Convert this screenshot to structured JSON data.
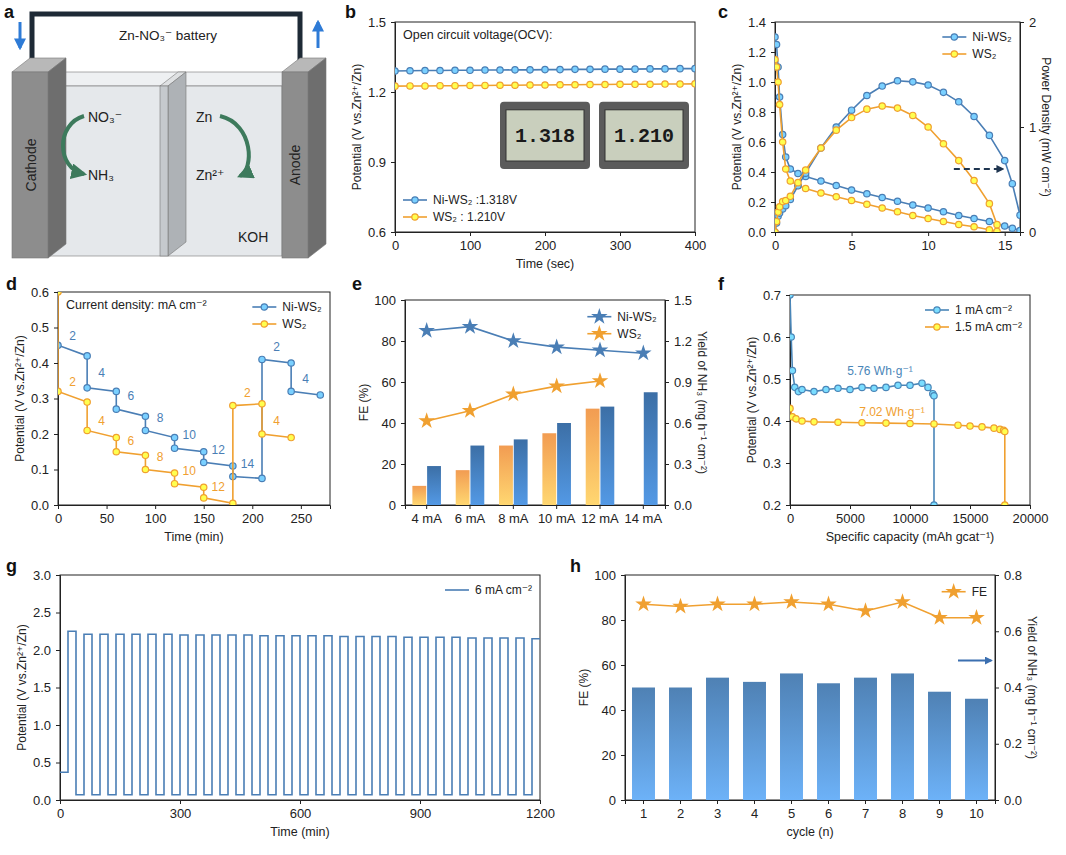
{
  "diagram": {
    "panel_label": "a",
    "title": "Zn-NO₃⁻ battery",
    "cathode": "Cathode",
    "anode": "Anode",
    "reactant": "NO₃⁻",
    "product": "NH₃",
    "metal": "Zn",
    "ion": "Zn²⁺",
    "electrolyte": "KOH"
  },
  "chart_data": [
    {
      "panel_label": "b",
      "type": "line",
      "title": "Open circuit voltage(OCV):",
      "annotations": [
        "1.318",
        "1.210"
      ],
      "xlabel": "Time (sec)",
      "ylabel": "Potential (V vs.Zn²⁺/Zn)",
      "x": [
        0,
        20,
        40,
        60,
        80,
        100,
        120,
        140,
        160,
        180,
        200,
        220,
        240,
        260,
        280,
        300,
        320,
        340,
        360,
        380,
        400
      ],
      "xlim": [
        0,
        400
      ],
      "xticks": [
        0,
        100,
        200,
        300,
        400
      ],
      "ylim": [
        0.6,
        1.5
      ],
      "yticks": [
        0.6,
        0.9,
        1.2,
        1.5
      ],
      "legend": "lower left",
      "series": [
        {
          "name": "Ni-WS₂ :1.318V",
          "color": "#4a7eb5",
          "marker": "circle",
          "values": [
            1.29,
            1.291,
            1.292,
            1.292,
            1.293,
            1.293,
            1.294,
            1.294,
            1.295,
            1.295,
            1.296,
            1.296,
            1.297,
            1.297,
            1.298,
            1.298,
            1.298,
            1.299,
            1.299,
            1.3,
            1.3
          ]
        },
        {
          "name": "WS₂ : 1.210V",
          "color": "#f0a030",
          "marker": "circle",
          "values": [
            1.225,
            1.226,
            1.226,
            1.227,
            1.227,
            1.228,
            1.228,
            1.229,
            1.229,
            1.23,
            1.23,
            1.231,
            1.231,
            1.232,
            1.232,
            1.233,
            1.233,
            1.233,
            1.234,
            1.234,
            1.235
          ]
        }
      ]
    },
    {
      "panel_label": "c",
      "type": "line",
      "ylabel": "Potential (V vs.Zn²⁺/Zn)",
      "y2label": "Power Density (mW cm⁻²)",
      "xlim": [
        0,
        16
      ],
      "xticks": [
        0,
        5,
        10,
        15
      ],
      "ylim": [
        0,
        1.4
      ],
      "yticks": [
        {
          "value": 0,
          "label": "0.0"
        },
        0.2,
        0.4,
        0.6,
        0.8,
        {
          "value": 1,
          "label": "1.0"
        },
        1.2,
        1.4
      ],
      "y2lim": [
        0,
        2
      ],
      "y2ticks": [
        0,
        1,
        2
      ],
      "legend": "upper right",
      "series": [
        {
          "name": "Ni-WS₂",
          "color": "#4a7eb5",
          "marker": "circle",
          "x": [
            0,
            0.1,
            0.2,
            0.3,
            0.5,
            0.7,
            1,
            1.5,
            2,
            3,
            4,
            5,
            6,
            7,
            8,
            9,
            10,
            11,
            12,
            13,
            14,
            15,
            15.5,
            16
          ],
          "values": [
            1.3,
            1.25,
            1.1,
            0.9,
            0.65,
            0.5,
            0.42,
            0.39,
            0.37,
            0.34,
            0.31,
            0.28,
            0.255,
            0.23,
            0.205,
            0.18,
            0.16,
            0.135,
            0.11,
            0.09,
            0.07,
            0.04,
            0.025,
            0.01
          ]
        },
        {
          "name": "WS₂",
          "color": "#f0a030",
          "marker": "circle",
          "x": [
            0,
            0.1,
            0.2,
            0.3,
            0.5,
            0.7,
            1,
            1.5,
            2,
            3,
            4,
            5,
            6,
            7,
            8,
            9,
            10,
            11,
            12,
            13,
            14,
            14.5
          ],
          "values": [
            1.15,
            1.1,
            1.0,
            0.85,
            0.6,
            0.42,
            0.34,
            0.31,
            0.29,
            0.26,
            0.235,
            0.21,
            0.185,
            0.16,
            0.135,
            0.11,
            0.09,
            0.07,
            0.05,
            0.035,
            0.015,
            0.005
          ]
        },
        {
          "color": "#4a7eb5",
          "marker": "circle",
          "axis": "y2",
          "x": [
            0,
            0.1,
            0.2,
            0.3,
            0.5,
            0.7,
            1,
            1.5,
            2,
            3,
            4,
            5,
            6,
            7,
            8,
            9,
            10,
            11,
            12,
            13,
            14,
            15,
            15.5,
            16
          ],
          "values": [
            0,
            0.085,
            0.15,
            0.18,
            0.22,
            0.25,
            0.31,
            0.44,
            0.56,
            0.8,
            1.0,
            1.16,
            1.3,
            1.39,
            1.44,
            1.43,
            1.4,
            1.33,
            1.24,
            1.1,
            0.92,
            0.68,
            0.46,
            0.16
          ]
        },
        {
          "color": "#f0a030",
          "marker": "circle",
          "axis": "y2",
          "x": [
            0,
            0.1,
            0.2,
            0.3,
            0.5,
            0.7,
            1,
            1.5,
            2,
            3,
            4,
            5,
            6,
            7,
            8,
            9,
            10,
            11,
            12,
            13,
            14,
            14.5
          ],
          "values": [
            0,
            0.1,
            0.19,
            0.24,
            0.29,
            0.3,
            0.34,
            0.47,
            0.59,
            0.8,
            0.97,
            1.09,
            1.17,
            1.2,
            1.18,
            1.11,
            1.0,
            0.84,
            0.68,
            0.49,
            0.27,
            0.07
          ]
        }
      ]
    },
    {
      "panel_label": "d",
      "type": "line",
      "title": "Current density: mA cm⁻²",
      "xlabel": "Time (min)",
      "ylabel": "Potential (V vs.Zn²⁺/Zn)",
      "xlim": [
        0,
        280
      ],
      "xticks": [
        0,
        50,
        100,
        150,
        200,
        250
      ],
      "ylim": [
        0,
        0.6
      ],
      "yticks": [
        {
          "value": 0,
          "label": "0.0"
        },
        0.1,
        0.2,
        0.3,
        0.4,
        0.5,
        0.6
      ],
      "legend": "upper right",
      "series": [
        {
          "name": "Ni-WS₂",
          "color": "#4a7eb5",
          "marker": "circle",
          "x": [
            0,
            30,
            30,
            60,
            60,
            90,
            90,
            120,
            120,
            150,
            150,
            180,
            180,
            210,
            210,
            240,
            240,
            270
          ],
          "values": [
            0.45,
            0.42,
            0.33,
            0.32,
            0.27,
            0.25,
            0.21,
            0.19,
            0.16,
            0.15,
            0.12,
            0.11,
            0.08,
            0.075,
            0.41,
            0.4,
            0.32,
            0.31
          ],
          "annotations": [
            {
              "text": "2",
              "x": 15,
              "y": 0.465
            },
            {
              "text": "4",
              "x": 45,
              "y": 0.36
            },
            {
              "text": "6",
              "x": 75,
              "y": 0.295
            },
            {
              "text": "8",
              "x": 105,
              "y": 0.235
            },
            {
              "text": "10",
              "x": 135,
              "y": 0.185
            },
            {
              "text": "12",
              "x": 165,
              "y": 0.145
            },
            {
              "text": "14",
              "x": 195,
              "y": 0.105
            },
            {
              "text": "2",
              "x": 225,
              "y": 0.435
            },
            {
              "text": "4",
              "x": 255,
              "y": 0.345
            }
          ]
        },
        {
          "name": "WS₂",
          "color": "#f0a030",
          "marker": "circle",
          "x": [
            0,
            0,
            30,
            30,
            60,
            60,
            90,
            90,
            120,
            120,
            150,
            150,
            180,
            180,
            210,
            210,
            240
          ],
          "values": [
            0.6,
            0.32,
            0.29,
            0.21,
            0.19,
            0.15,
            0.14,
            0.1,
            0.09,
            0.06,
            0.05,
            0.02,
            0.005,
            0.28,
            0.285,
            0.2,
            0.19
          ],
          "annotations": [
            {
              "text": "2",
              "x": 15,
              "y": 0.335
            },
            {
              "text": "4",
              "x": 45,
              "y": 0.225
            },
            {
              "text": "6",
              "x": 75,
              "y": 0.17
            },
            {
              "text": "8",
              "x": 105,
              "y": 0.125
            },
            {
              "text": "10",
              "x": 135,
              "y": 0.085
            },
            {
              "text": "12",
              "x": 165,
              "y": 0.04
            },
            {
              "text": "2",
              "x": 195,
              "y": 0.305
            },
            {
              "text": "4",
              "x": 225,
              "y": 0.225
            }
          ]
        }
      ]
    },
    {
      "panel_label": "e",
      "type": "bar",
      "categories": [
        "4 mA",
        "6 mA",
        "8 mA",
        "10 mA",
        "12 mA",
        "14 mA"
      ],
      "ylabel": "FE (%)",
      "y2label": "Yield of NH₃ (mg h⁻¹ cm⁻²)",
      "ylim": [
        0,
        100
      ],
      "yticks": [
        0,
        20,
        40,
        60,
        80,
        100
      ],
      "y2lim": [
        0,
        1.5
      ],
      "y2ticks": [
        {
          "value": 0,
          "label": "0.0"
        },
        0.3,
        0.6,
        0.9,
        1.2,
        1.5
      ],
      "legend": "upper right",
      "series": [
        {
          "name": "Ni-WS₂",
          "type": "line",
          "marker": "star",
          "color": "#4a7eb5",
          "values": [
            85,
            87,
            80,
            77,
            75.5,
            74
          ]
        },
        {
          "name": "WS₂",
          "type": "line",
          "marker": "star",
          "color": "#f0a030",
          "values": [
            41,
            46,
            54,
            58,
            60.5,
            null
          ]
        },
        {
          "type": "bar",
          "axis": "y2",
          "color": "#f29c52",
          "values": [
            0.14,
            0.255,
            0.435,
            0.525,
            0.705,
            null
          ]
        },
        {
          "type": "bar",
          "axis": "y2",
          "color": "#3c6fa6",
          "values": [
            0.285,
            0.435,
            0.48,
            0.6,
            0.72,
            0.825
          ]
        }
      ]
    },
    {
      "panel_label": "f",
      "type": "line",
      "xlabel": "Specific capacity (mAh gcat⁻¹)",
      "ylabel": "Potential (V vs.Zn²⁺/Zn)",
      "xlim": [
        0,
        20000
      ],
      "xticks": [
        0,
        5000,
        10000,
        15000,
        20000
      ],
      "ylim": [
        0.2,
        0.7
      ],
      "yticks": [
        0.2,
        0.3,
        0.4,
        0.5,
        0.6,
        0.7
      ],
      "legend": "upper right",
      "series": [
        {
          "name": "1 mA cm⁻²",
          "color": "#4a86b8",
          "marker": "circle",
          "x": [
            0,
            100,
            200,
            400,
            700,
            1000,
            2000,
            3000,
            4000,
            5000,
            6000,
            7000,
            8000,
            9000,
            10000,
            11000,
            11500,
            11900,
            12000,
            12000
          ],
          "values": [
            0.7,
            0.6,
            0.52,
            0.48,
            0.47,
            0.475,
            0.47,
            0.475,
            0.478,
            0.475,
            0.48,
            0.478,
            0.48,
            0.485,
            0.485,
            0.49,
            0.48,
            0.465,
            0.46,
            0.2
          ],
          "annotations": [
            {
              "text": "5.76 Wh·g⁻¹",
              "x": 7500,
              "y": 0.51
            }
          ]
        },
        {
          "name": "1.5 mA cm⁻²",
          "color": "#f0a030",
          "marker": "circle",
          "x": [
            0,
            200,
            500,
            1000,
            2000,
            4000,
            6000,
            8000,
            10000,
            12000,
            14000,
            15000,
            16000,
            17000,
            17500,
            17800,
            17900,
            17900
          ],
          "values": [
            0.43,
            0.41,
            0.405,
            0.4,
            0.398,
            0.397,
            0.396,
            0.395,
            0.394,
            0.393,
            0.39,
            0.388,
            0.386,
            0.383,
            0.38,
            0.378,
            0.375,
            0.2
          ],
          "annotations": [
            {
              "text": "7.02 Wh·g⁻¹",
              "x": 8500,
              "y": 0.413
            }
          ]
        }
      ]
    },
    {
      "panel_label": "g",
      "type": "line",
      "xlabel": "Time (min)",
      "ylabel": "Potential (V vs.Zn²⁺/Zn)",
      "x": [
        0,
        20,
        40,
        60,
        80,
        100,
        120,
        140,
        160,
        180,
        200,
        220,
        240,
        260,
        280,
        300,
        320,
        340,
        360,
        380,
        400,
        420,
        440,
        460,
        480,
        500,
        520,
        540,
        560,
        580,
        600,
        620,
        640,
        660,
        680,
        700,
        720,
        740,
        760,
        780,
        800,
        820,
        840,
        860,
        880,
        900,
        920,
        940,
        960,
        980,
        1000,
        1020,
        1040,
        1060,
        1080,
        1100,
        1120,
        1140,
        1160,
        1180,
        1200
      ],
      "xlim": [
        0,
        1200
      ],
      "xticks": [
        0,
        300,
        600,
        900,
        1200
      ],
      "ylim": [
        0,
        3
      ],
      "yticks": [
        {
          "value": 0,
          "label": "0.0"
        },
        0.5,
        {
          "value": 1,
          "label": "1.0"
        },
        1.5,
        {
          "value": 2,
          "label": "2.0"
        },
        2.5,
        {
          "value": 3,
          "label": "3.0"
        }
      ],
      "legend": "upper right",
      "series": [
        {
          "name": "6 mA cm⁻²",
          "color": "#4a7eb5",
          "line_style": "step",
          "values": [
            0.37,
            2.25,
            0.07,
            2.21,
            0.07,
            2.21,
            0.07,
            2.21,
            0.07,
            2.21,
            0.07,
            2.21,
            0.07,
            2.21,
            0.07,
            2.2,
            0.07,
            2.2,
            0.07,
            2.2,
            0.07,
            2.2,
            0.07,
            2.2,
            0.07,
            2.19,
            0.07,
            2.19,
            0.07,
            2.19,
            0.07,
            2.19,
            0.07,
            2.19,
            0.07,
            2.18,
            0.07,
            2.18,
            0.07,
            2.18,
            0.07,
            2.18,
            0.07,
            2.17,
            0.07,
            2.17,
            0.07,
            2.17,
            0.07,
            2.17,
            0.07,
            2.16,
            0.07,
            2.16,
            0.07,
            2.16,
            0.07,
            2.16,
            0.07,
            2.15,
            2.15
          ]
        }
      ]
    },
    {
      "panel_label": "h",
      "type": "bar",
      "categories": [
        "1",
        "2",
        "3",
        "4",
        "5",
        "6",
        "7",
        "8",
        "9",
        "10"
      ],
      "xlabel": "cycle (n)",
      "ylabel": "FE (%)",
      "y2label": "Yield of NH₃ (mg h⁻¹ cm⁻²)",
      "ylim": [
        0,
        100
      ],
      "yticks": [
        0,
        20,
        40,
        60,
        80,
        100
      ],
      "y2lim": [
        0,
        0.8
      ],
      "y2ticks": [
        {
          "value": 0,
          "label": "0.0"
        },
        0.2,
        0.4,
        0.6,
        0.8
      ],
      "legend": "upper right",
      "series": [
        {
          "name": "FE",
          "type": "line",
          "marker": "star",
          "color": "#f0a030",
          "values": [
            87,
            86,
            87,
            87,
            88,
            87,
            84,
            88,
            81,
            81
          ]
        },
        {
          "type": "bar",
          "axis": "y2",
          "color": "#4f81b4",
          "values": [
            0.4,
            0.4,
            0.435,
            0.42,
            0.45,
            0.415,
            0.435,
            0.45,
            0.385,
            0.36
          ]
        }
      ]
    }
  ]
}
